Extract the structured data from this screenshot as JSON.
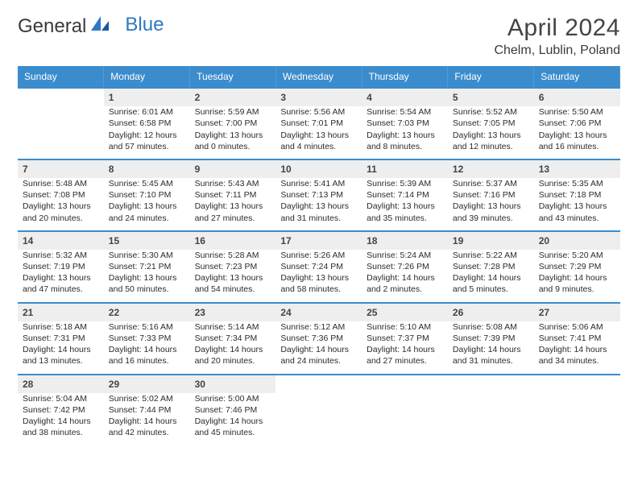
{
  "logo": {
    "text1": "General",
    "text2": "Blue"
  },
  "title": "April 2024",
  "location": "Chelm, Lublin, Poland",
  "colors": {
    "header_bg": "#3b8ccd",
    "header_text": "#ffffff",
    "daynum_bg": "#eeeeee",
    "body_text": "#2b2b2b",
    "rule": "#3b8ccd"
  },
  "weekdays": [
    "Sunday",
    "Monday",
    "Tuesday",
    "Wednesday",
    "Thursday",
    "Friday",
    "Saturday"
  ],
  "weeks": [
    [
      null,
      {
        "n": "1",
        "sr": "Sunrise: 6:01 AM",
        "ss": "Sunset: 6:58 PM",
        "d1": "Daylight: 12 hours",
        "d2": "and 57 minutes."
      },
      {
        "n": "2",
        "sr": "Sunrise: 5:59 AM",
        "ss": "Sunset: 7:00 PM",
        "d1": "Daylight: 13 hours",
        "d2": "and 0 minutes."
      },
      {
        "n": "3",
        "sr": "Sunrise: 5:56 AM",
        "ss": "Sunset: 7:01 PM",
        "d1": "Daylight: 13 hours",
        "d2": "and 4 minutes."
      },
      {
        "n": "4",
        "sr": "Sunrise: 5:54 AM",
        "ss": "Sunset: 7:03 PM",
        "d1": "Daylight: 13 hours",
        "d2": "and 8 minutes."
      },
      {
        "n": "5",
        "sr": "Sunrise: 5:52 AM",
        "ss": "Sunset: 7:05 PM",
        "d1": "Daylight: 13 hours",
        "d2": "and 12 minutes."
      },
      {
        "n": "6",
        "sr": "Sunrise: 5:50 AM",
        "ss": "Sunset: 7:06 PM",
        "d1": "Daylight: 13 hours",
        "d2": "and 16 minutes."
      }
    ],
    [
      {
        "n": "7",
        "sr": "Sunrise: 5:48 AM",
        "ss": "Sunset: 7:08 PM",
        "d1": "Daylight: 13 hours",
        "d2": "and 20 minutes."
      },
      {
        "n": "8",
        "sr": "Sunrise: 5:45 AM",
        "ss": "Sunset: 7:10 PM",
        "d1": "Daylight: 13 hours",
        "d2": "and 24 minutes."
      },
      {
        "n": "9",
        "sr": "Sunrise: 5:43 AM",
        "ss": "Sunset: 7:11 PM",
        "d1": "Daylight: 13 hours",
        "d2": "and 27 minutes."
      },
      {
        "n": "10",
        "sr": "Sunrise: 5:41 AM",
        "ss": "Sunset: 7:13 PM",
        "d1": "Daylight: 13 hours",
        "d2": "and 31 minutes."
      },
      {
        "n": "11",
        "sr": "Sunrise: 5:39 AM",
        "ss": "Sunset: 7:14 PM",
        "d1": "Daylight: 13 hours",
        "d2": "and 35 minutes."
      },
      {
        "n": "12",
        "sr": "Sunrise: 5:37 AM",
        "ss": "Sunset: 7:16 PM",
        "d1": "Daylight: 13 hours",
        "d2": "and 39 minutes."
      },
      {
        "n": "13",
        "sr": "Sunrise: 5:35 AM",
        "ss": "Sunset: 7:18 PM",
        "d1": "Daylight: 13 hours",
        "d2": "and 43 minutes."
      }
    ],
    [
      {
        "n": "14",
        "sr": "Sunrise: 5:32 AM",
        "ss": "Sunset: 7:19 PM",
        "d1": "Daylight: 13 hours",
        "d2": "and 47 minutes."
      },
      {
        "n": "15",
        "sr": "Sunrise: 5:30 AM",
        "ss": "Sunset: 7:21 PM",
        "d1": "Daylight: 13 hours",
        "d2": "and 50 minutes."
      },
      {
        "n": "16",
        "sr": "Sunrise: 5:28 AM",
        "ss": "Sunset: 7:23 PM",
        "d1": "Daylight: 13 hours",
        "d2": "and 54 minutes."
      },
      {
        "n": "17",
        "sr": "Sunrise: 5:26 AM",
        "ss": "Sunset: 7:24 PM",
        "d1": "Daylight: 13 hours",
        "d2": "and 58 minutes."
      },
      {
        "n": "18",
        "sr": "Sunrise: 5:24 AM",
        "ss": "Sunset: 7:26 PM",
        "d1": "Daylight: 14 hours",
        "d2": "and 2 minutes."
      },
      {
        "n": "19",
        "sr": "Sunrise: 5:22 AM",
        "ss": "Sunset: 7:28 PM",
        "d1": "Daylight: 14 hours",
        "d2": "and 5 minutes."
      },
      {
        "n": "20",
        "sr": "Sunrise: 5:20 AM",
        "ss": "Sunset: 7:29 PM",
        "d1": "Daylight: 14 hours",
        "d2": "and 9 minutes."
      }
    ],
    [
      {
        "n": "21",
        "sr": "Sunrise: 5:18 AM",
        "ss": "Sunset: 7:31 PM",
        "d1": "Daylight: 14 hours",
        "d2": "and 13 minutes."
      },
      {
        "n": "22",
        "sr": "Sunrise: 5:16 AM",
        "ss": "Sunset: 7:33 PM",
        "d1": "Daylight: 14 hours",
        "d2": "and 16 minutes."
      },
      {
        "n": "23",
        "sr": "Sunrise: 5:14 AM",
        "ss": "Sunset: 7:34 PM",
        "d1": "Daylight: 14 hours",
        "d2": "and 20 minutes."
      },
      {
        "n": "24",
        "sr": "Sunrise: 5:12 AM",
        "ss": "Sunset: 7:36 PM",
        "d1": "Daylight: 14 hours",
        "d2": "and 24 minutes."
      },
      {
        "n": "25",
        "sr": "Sunrise: 5:10 AM",
        "ss": "Sunset: 7:37 PM",
        "d1": "Daylight: 14 hours",
        "d2": "and 27 minutes."
      },
      {
        "n": "26",
        "sr": "Sunrise: 5:08 AM",
        "ss": "Sunset: 7:39 PM",
        "d1": "Daylight: 14 hours",
        "d2": "and 31 minutes."
      },
      {
        "n": "27",
        "sr": "Sunrise: 5:06 AM",
        "ss": "Sunset: 7:41 PM",
        "d1": "Daylight: 14 hours",
        "d2": "and 34 minutes."
      }
    ],
    [
      {
        "n": "28",
        "sr": "Sunrise: 5:04 AM",
        "ss": "Sunset: 7:42 PM",
        "d1": "Daylight: 14 hours",
        "d2": "and 38 minutes."
      },
      {
        "n": "29",
        "sr": "Sunrise: 5:02 AM",
        "ss": "Sunset: 7:44 PM",
        "d1": "Daylight: 14 hours",
        "d2": "and 42 minutes."
      },
      {
        "n": "30",
        "sr": "Sunrise: 5:00 AM",
        "ss": "Sunset: 7:46 PM",
        "d1": "Daylight: 14 hours",
        "d2": "and 45 minutes."
      },
      null,
      null,
      null,
      null
    ]
  ]
}
